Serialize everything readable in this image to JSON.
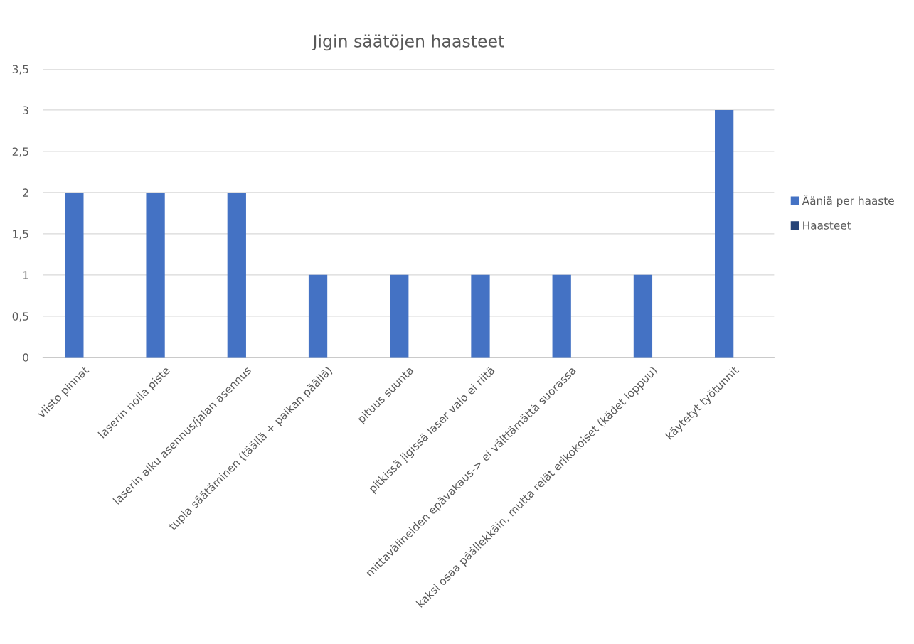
{
  "chart_data": {
    "type": "bar",
    "title": "Jigin säätöjen haasteet",
    "categories": [
      "viisto pinnat",
      "laserin nolla piste",
      "laserin alku asennus/jalan asennus",
      "tupla säätäminen (täällä + paikan päällä)",
      "pituus suunta",
      "pitkissä jigissä laser valo ei riitä",
      "mittavälineiden epävakaus-> ei välttämättä suorassa",
      "kaksi osaa päällekkäin, mutta reiät erikokoiset (kädet loppuu)",
      "käytetyt työtunnit"
    ],
    "series": [
      {
        "name": "Ääniä per haaste",
        "color": "#4472c4",
        "values": [
          2,
          2,
          2,
          1,
          1,
          1,
          1,
          1,
          3
        ]
      },
      {
        "name": "Haasteet",
        "color": "#264478",
        "values": [
          null,
          null,
          null,
          null,
          null,
          null,
          null,
          null,
          null
        ]
      }
    ],
    "ylim": [
      0,
      3.5
    ],
    "yticks": [
      0,
      {
        "value": 0.5,
        "label": "0,5"
      },
      1,
      {
        "value": 1.5,
        "label": "1,5"
      },
      2,
      {
        "value": 2.5,
        "label": "2,5"
      },
      3,
      {
        "value": 3.5,
        "label": "3,5"
      }
    ],
    "grid": "y",
    "legend": "right"
  }
}
